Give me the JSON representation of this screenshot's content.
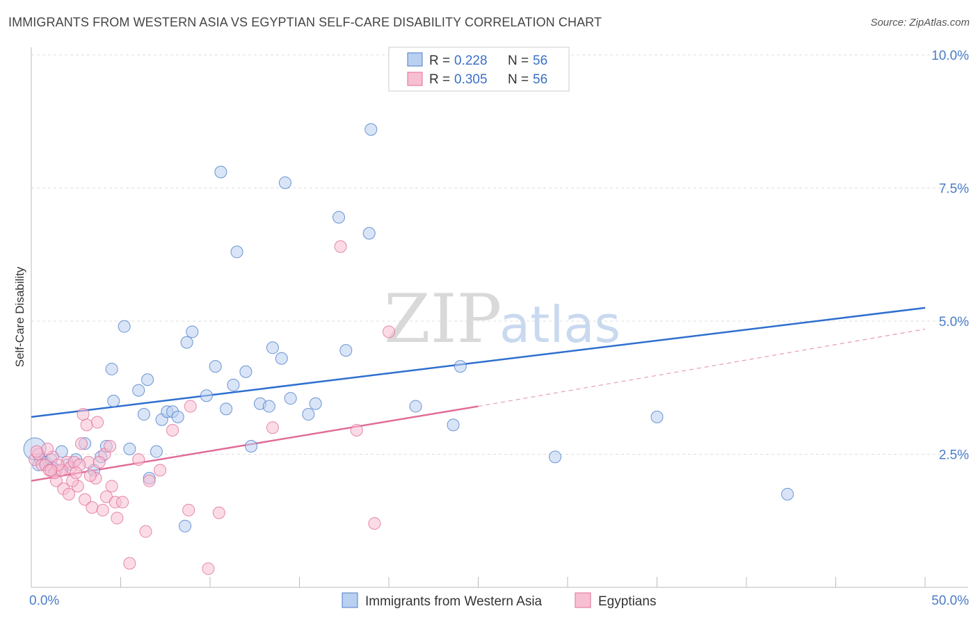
{
  "title": "IMMIGRANTS FROM WESTERN ASIA VS EGYPTIAN SELF-CARE DISABILITY CORRELATION CHART",
  "source": "Source: ZipAtlas.com",
  "watermark": {
    "zip": "ZIP",
    "atlas": "atlas"
  },
  "colors": {
    "blue": "#4a7cc9",
    "blue_line": "#2e6fcf",
    "pink": "#e06c98",
    "blue_fill": "#b9d0f0",
    "pink_fill": "#f7bfd2",
    "grid": "#dddddd"
  },
  "legend": {
    "rows": [
      {
        "r_label": "R =",
        "r_value": "0.228",
        "n_label": "N =",
        "n_value": "56",
        "series": "blue"
      },
      {
        "r_label": "R =",
        "r_value": "0.305",
        "n_label": "N =",
        "n_value": "56",
        "series": "pink"
      }
    ]
  },
  "chart_data": {
    "type": "scatter",
    "title": "IMMIGRANTS FROM WESTERN ASIA VS EGYPTIAN SELF-CARE DISABILITY CORRELATION CHART",
    "xlabel": "",
    "ylabel": "Self-Care Disability",
    "xlim": [
      0,
      50
    ],
    "ylim": [
      0,
      10
    ],
    "x_tick_labels": [
      "0.0%",
      "50.0%"
    ],
    "y_ticks": [
      2.5,
      5.0,
      7.5,
      10.0
    ],
    "y_tick_labels": [
      "2.5%",
      "5.0%",
      "7.5%",
      "10.0%"
    ],
    "grid": true,
    "legend_position": "top-center",
    "series": [
      {
        "name": "Immigrants from Western Asia",
        "color": "#4a7cc9",
        "r": 0.228,
        "n": 56,
        "trend": {
          "x": [
            0,
            50
          ],
          "y": [
            3.2,
            5.25
          ]
        },
        "points": [
          [
            0.2,
            2.6
          ],
          [
            0.5,
            2.4
          ],
          [
            0.8,
            2.35
          ],
          [
            1.1,
            2.4
          ],
          [
            1.4,
            2.2
          ],
          [
            1.7,
            2.55
          ],
          [
            2.0,
            2.3
          ],
          [
            2.5,
            2.4
          ],
          [
            3.0,
            2.7
          ],
          [
            3.5,
            2.2
          ],
          [
            3.9,
            2.45
          ],
          [
            4.2,
            2.65
          ],
          [
            4.6,
            3.5
          ],
          [
            4.5,
            4.1
          ],
          [
            5.2,
            4.9
          ],
          [
            5.5,
            2.6
          ],
          [
            6.0,
            3.7
          ],
          [
            6.3,
            3.25
          ],
          [
            6.5,
            3.9
          ],
          [
            6.6,
            2.05
          ],
          [
            7.0,
            2.55
          ],
          [
            7.3,
            3.15
          ],
          [
            7.6,
            3.3
          ],
          [
            7.9,
            3.3
          ],
          [
            8.2,
            3.2
          ],
          [
            8.7,
            4.6
          ],
          [
            9.0,
            4.8
          ],
          [
            8.6,
            1.15
          ],
          [
            9.8,
            3.6
          ],
          [
            10.3,
            4.15
          ],
          [
            10.6,
            7.8
          ],
          [
            10.9,
            3.35
          ],
          [
            11.3,
            3.8
          ],
          [
            11.5,
            6.3
          ],
          [
            12.0,
            4.05
          ],
          [
            12.3,
            2.65
          ],
          [
            12.8,
            3.45
          ],
          [
            13.3,
            3.4
          ],
          [
            13.5,
            4.5
          ],
          [
            14.0,
            4.3
          ],
          [
            14.2,
            7.6
          ],
          [
            14.5,
            3.55
          ],
          [
            15.5,
            3.25
          ],
          [
            15.9,
            3.45
          ],
          [
            17.2,
            6.95
          ],
          [
            17.6,
            4.45
          ],
          [
            18.9,
            6.65
          ],
          [
            19.0,
            8.6
          ],
          [
            21.5,
            3.4
          ],
          [
            23.6,
            3.05
          ],
          [
            24.0,
            4.15
          ],
          [
            29.3,
            2.45
          ],
          [
            35.0,
            3.2
          ],
          [
            42.3,
            1.75
          ],
          [
            0.4,
            2.3
          ],
          [
            1.2,
            2.25
          ]
        ]
      },
      {
        "name": "Egyptians",
        "color": "#e06c98",
        "r": 0.305,
        "n": 56,
        "trend": {
          "x": [
            0,
            25
          ],
          "y": [
            2.0,
            3.4
          ]
        },
        "trend_dashed": {
          "x": [
            25,
            50
          ],
          "y": [
            3.4,
            4.85
          ]
        },
        "points": [
          [
            0.2,
            2.4
          ],
          [
            0.4,
            2.5
          ],
          [
            0.6,
            2.3
          ],
          [
            0.8,
            2.3
          ],
          [
            1.0,
            2.2
          ],
          [
            1.2,
            2.45
          ],
          [
            1.4,
            2.0
          ],
          [
            1.6,
            2.2
          ],
          [
            1.8,
            1.85
          ],
          [
            2.0,
            2.35
          ],
          [
            2.2,
            2.25
          ],
          [
            2.4,
            2.35
          ],
          [
            2.6,
            1.9
          ],
          [
            2.8,
            2.7
          ],
          [
            3.0,
            1.65
          ],
          [
            3.2,
            2.35
          ],
          [
            2.9,
            3.25
          ],
          [
            3.1,
            3.05
          ],
          [
            3.4,
            1.5
          ],
          [
            3.6,
            2.05
          ],
          [
            3.7,
            3.1
          ],
          [
            4.0,
            1.45
          ],
          [
            4.1,
            2.5
          ],
          [
            4.2,
            1.7
          ],
          [
            4.4,
            2.65
          ],
          [
            4.5,
            1.9
          ],
          [
            4.7,
            1.6
          ],
          [
            4.8,
            1.3
          ],
          [
            5.1,
            1.6
          ],
          [
            5.5,
            0.45
          ],
          [
            6.0,
            2.4
          ],
          [
            6.4,
            1.05
          ],
          [
            6.6,
            2.0
          ],
          [
            7.2,
            2.2
          ],
          [
            7.9,
            2.95
          ],
          [
            8.8,
            1.45
          ],
          [
            8.9,
            3.4
          ],
          [
            9.9,
            0.35
          ],
          [
            10.5,
            1.4
          ],
          [
            13.5,
            3.0
          ],
          [
            17.3,
            6.4
          ],
          [
            18.2,
            2.95
          ],
          [
            19.2,
            1.2
          ],
          [
            20.0,
            4.8
          ],
          [
            1.3,
            2.15
          ],
          [
            2.3,
            2.0
          ],
          [
            0.9,
            2.6
          ],
          [
            1.7,
            2.2
          ],
          [
            2.1,
            1.75
          ],
          [
            3.3,
            2.1
          ],
          [
            0.3,
            2.55
          ],
          [
            1.5,
            2.3
          ],
          [
            2.7,
            2.3
          ],
          [
            3.8,
            2.35
          ],
          [
            1.1,
            2.2
          ],
          [
            2.5,
            2.15
          ]
        ]
      }
    ]
  },
  "bottom_legend": [
    {
      "label": "Immigrants from Western Asia",
      "series": "blue"
    },
    {
      "label": "Egyptians",
      "series": "pink"
    }
  ]
}
